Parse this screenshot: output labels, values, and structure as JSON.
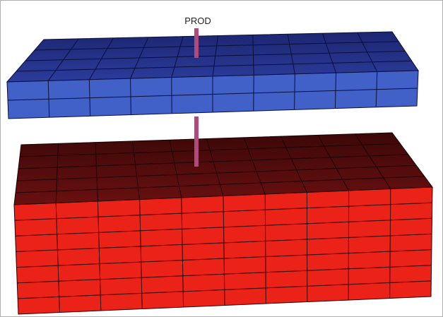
{
  "well": {
    "label": "PROD"
  }
}
